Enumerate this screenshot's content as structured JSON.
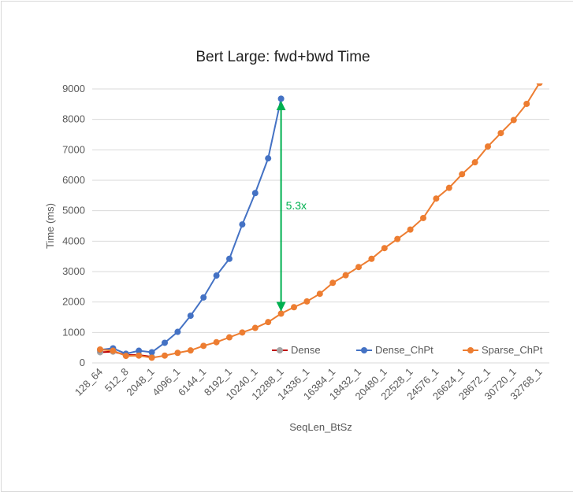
{
  "chart_data": {
    "type": "line",
    "title": "Bert Large: fwd+bwd Time",
    "x_label": "SeqLen_BtSz",
    "y_label": "Time (ms)",
    "categories": [
      "128_64",
      null,
      "512_8",
      null,
      "2048_1",
      null,
      "4096_1",
      null,
      "6144_1",
      null,
      "8192_1",
      null,
      "10240_1",
      null,
      "12288_1",
      null,
      "14336_1",
      null,
      "16384_1",
      null,
      "18432_1",
      null,
      "20480_1",
      null,
      "22528_1",
      null,
      "24576_1",
      null,
      "26624_1",
      null,
      "28672_1",
      null,
      "30720_1",
      null,
      "32768_1"
    ],
    "series": [
      {
        "name": "Dense",
        "color": "#c00000",
        "marker_color": "#a5a5a5",
        "values": [
          350,
          370,
          260,
          260,
          200,
          null,
          null,
          null,
          null,
          null,
          null,
          null,
          null,
          null,
          null,
          null,
          null,
          null,
          null,
          null,
          null,
          null,
          null,
          null,
          null,
          null,
          null,
          null,
          null,
          null,
          null,
          null,
          null,
          null,
          null
        ]
      },
      {
        "name": "Dense_ChPt",
        "color": "#4472c4",
        "marker_color": "#4472c4",
        "values": [
          430,
          480,
          300,
          400,
          350,
          660,
          1020,
          1550,
          2150,
          2870,
          3420,
          4550,
          5580,
          6720,
          8680,
          null,
          null,
          null,
          null,
          null,
          null,
          null,
          null,
          null,
          null,
          null,
          null,
          null,
          null,
          null,
          null,
          null,
          null,
          null,
          null
        ]
      },
      {
        "name": "Sparse_ChPt",
        "color": "#ed7d31",
        "marker_color": "#ed7d31",
        "values": [
          440,
          400,
          230,
          240,
          170,
          240,
          330,
          410,
          560,
          680,
          840,
          1000,
          1150,
          1340,
          1620,
          1830,
          2020,
          2270,
          2630,
          2880,
          3150,
          3420,
          3770,
          4070,
          4380,
          4760,
          5400,
          5750,
          6200,
          6590,
          7110,
          7550,
          7980,
          8510,
          9200
        ]
      }
    ],
    "ylim": [
      0,
      9000
    ],
    "yticks": [
      0,
      1000,
      2000,
      3000,
      4000,
      5000,
      6000,
      7000,
      8000,
      9000
    ],
    "legend": "bottom",
    "annotation": {
      "text": "5.3x",
      "color": "#00b050",
      "category_index": 14,
      "from_series": 2,
      "to_series": 1
    }
  }
}
